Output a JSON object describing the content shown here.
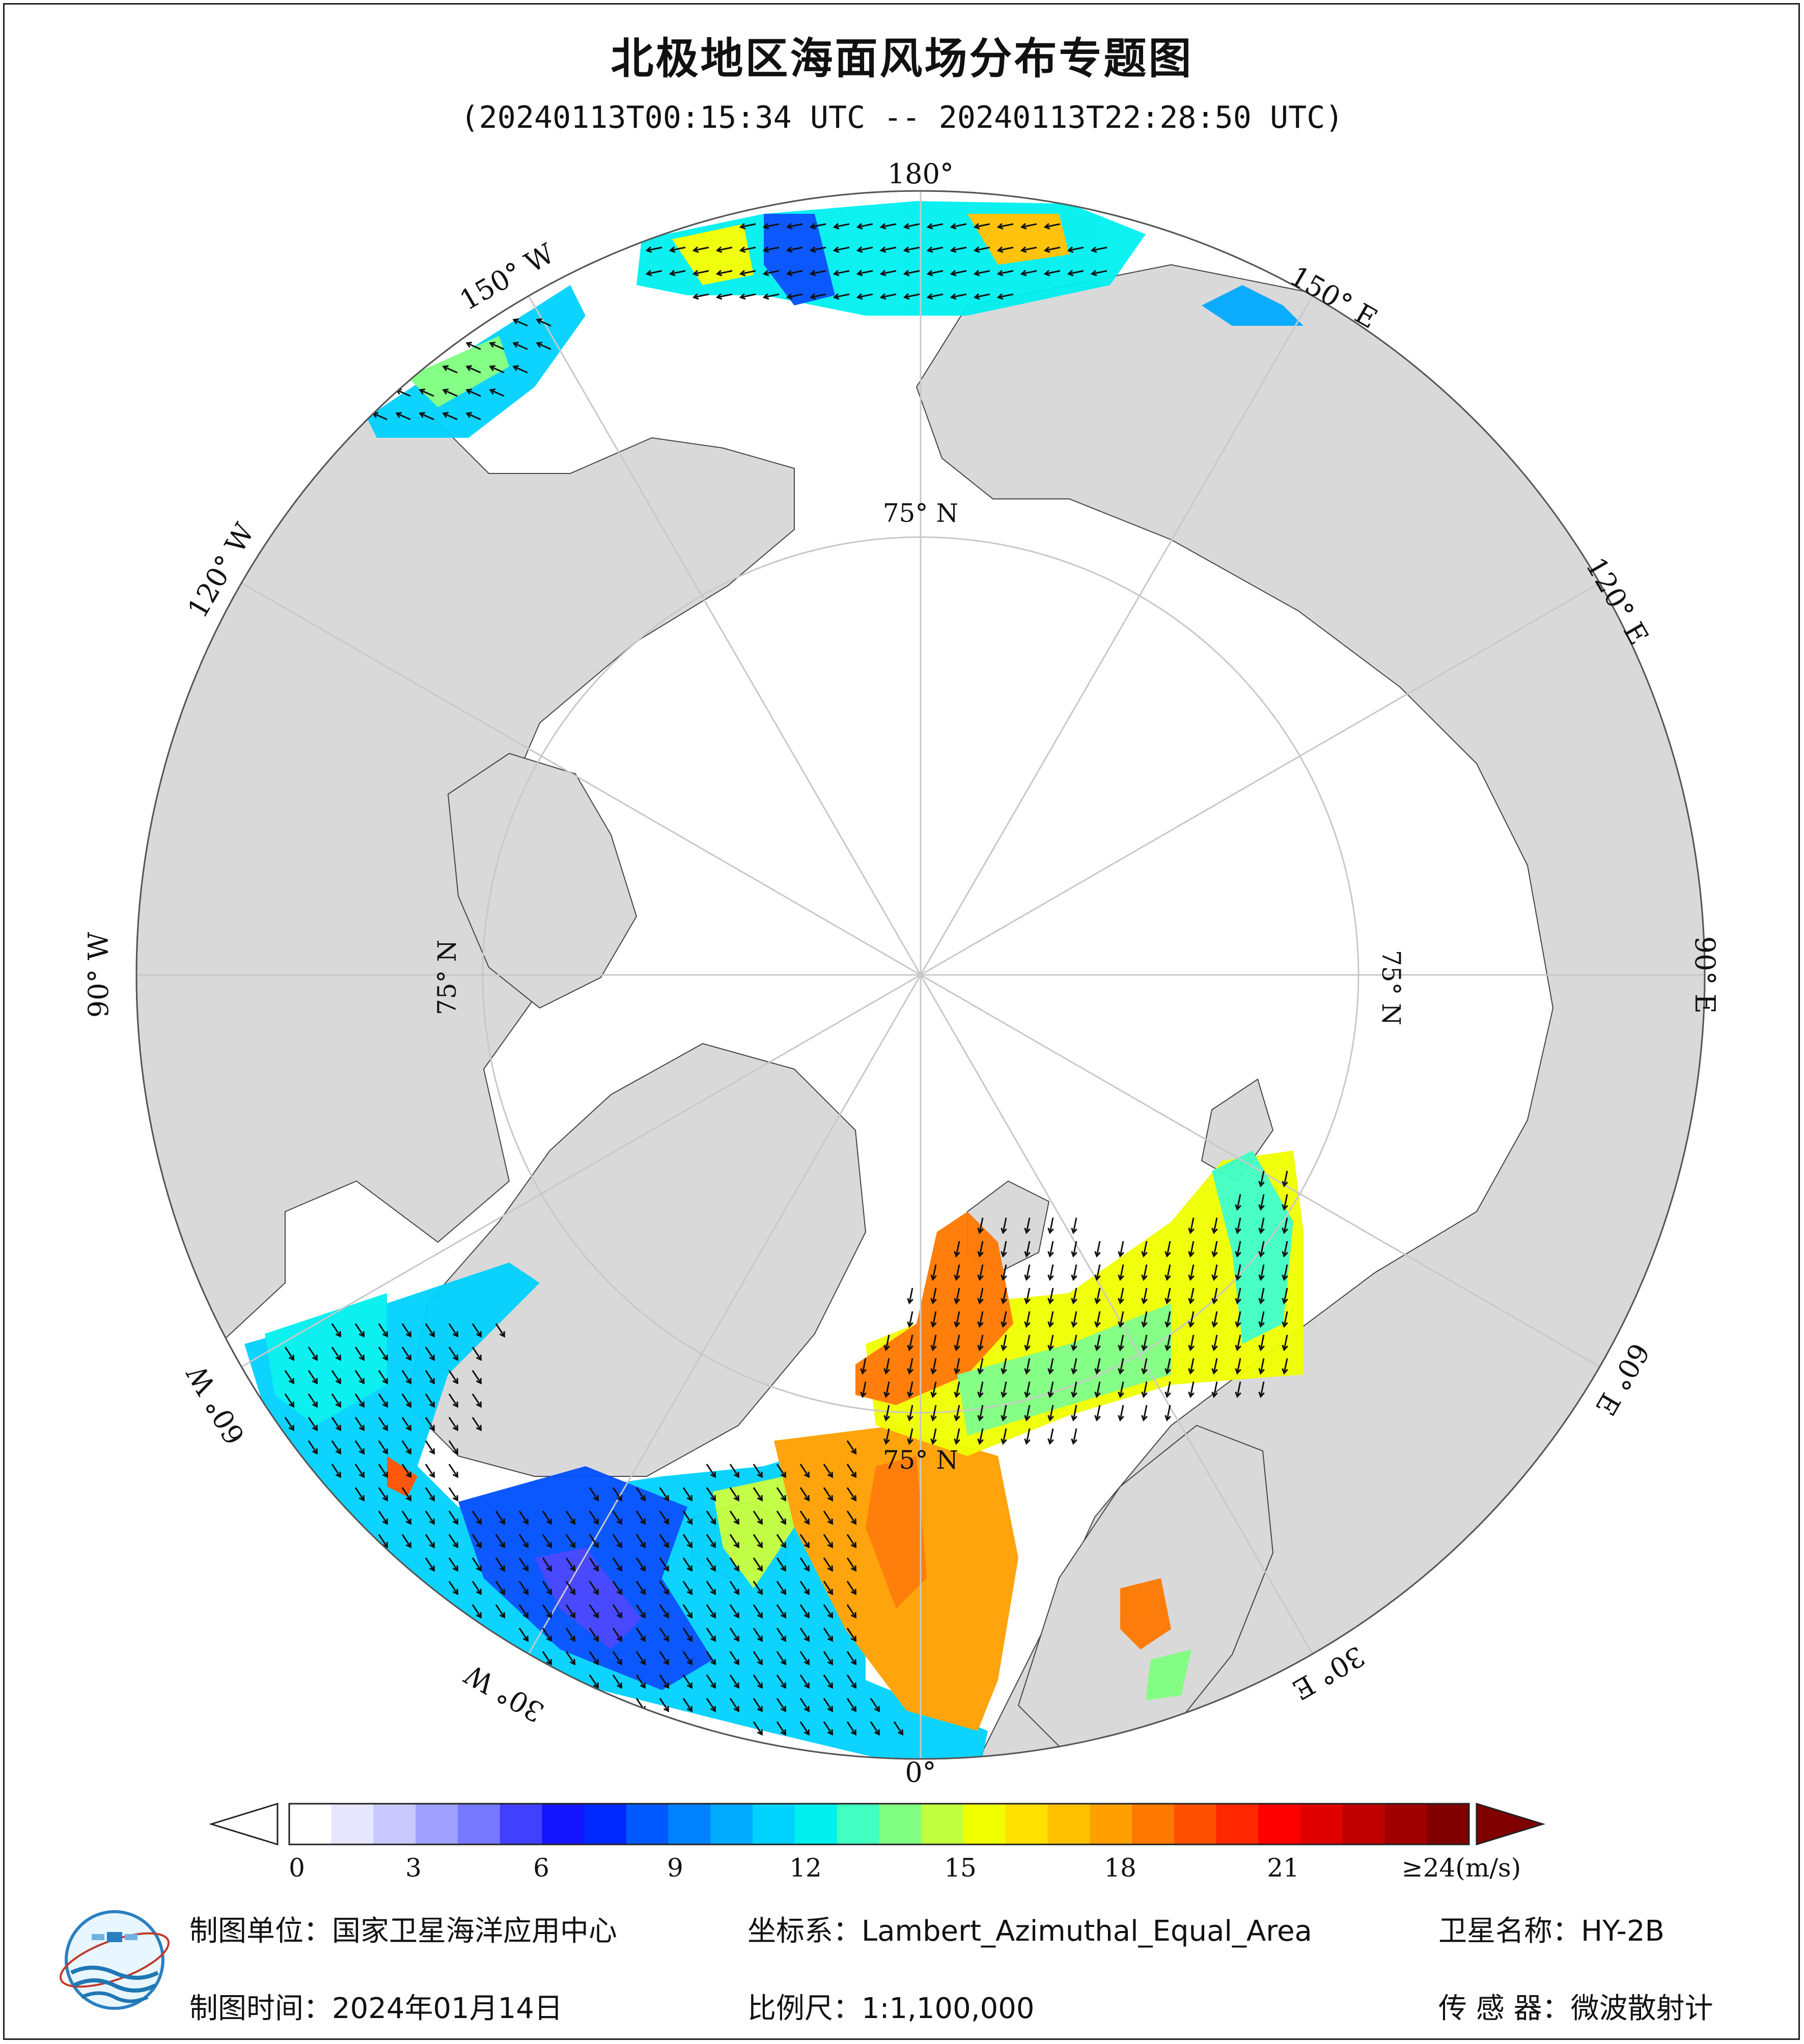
{
  "title": "北极地区海面风场分布专题图",
  "subtitle": "(20240113T00:15:34 UTC -- 20240113T22:28:50 UTC)",
  "map": {
    "longitude_labels": [
      {
        "text": "180°",
        "lon": 180
      },
      {
        "text": "150° W",
        "lon": -150
      },
      {
        "text": "120° W",
        "lon": -120
      },
      {
        "text": "90° W",
        "lon": -90
      },
      {
        "text": "60° W",
        "lon": -60
      },
      {
        "text": "30° W",
        "lon": -30
      },
      {
        "text": "0°",
        "lon": 0
      },
      {
        "text": "30° E",
        "lon": 30
      },
      {
        "text": "60° E",
        "lon": 60
      },
      {
        "text": "90° E",
        "lon": 90
      },
      {
        "text": "120° E",
        "lon": 120
      },
      {
        "text": "150° E",
        "lon": 150
      }
    ],
    "latitude_labels": [
      {
        "text": "75° N",
        "lon": 180
      },
      {
        "text": "75° N",
        "lon": 90
      },
      {
        "text": "75° N",
        "lon": 0
      },
      {
        "text": "75° N",
        "lon": -90
      }
    ],
    "colors": {
      "land": "#d9d9d9",
      "ocean_ice": "#ffffff",
      "graticule": "#c8c8c8",
      "vector": "#111111"
    }
  },
  "colorbar": {
    "unit": "(m/s)",
    "ticks": [
      "0",
      "3",
      "6",
      "9",
      "12",
      "15",
      "18",
      "21",
      "≥24"
    ],
    "min": 0,
    "max": 24,
    "colors": [
      "#ffffff",
      "#e6e6ff",
      "#c8c8ff",
      "#a0a0ff",
      "#7878ff",
      "#4040ff",
      "#1414ff",
      "#0028ff",
      "#005aff",
      "#0082ff",
      "#00aaff",
      "#00d2ff",
      "#00f0f0",
      "#40ffc0",
      "#80ff80",
      "#c0ff40",
      "#f0ff00",
      "#ffe000",
      "#ffc000",
      "#ffa000",
      "#ff7800",
      "#ff5000",
      "#ff2800",
      "#ff0000",
      "#e00000",
      "#c00000",
      "#a00000",
      "#800000"
    ],
    "under_color": "#ffffff",
    "over_color": "#800000"
  },
  "footer": {
    "org_label": "制图单位：",
    "org_value": "国家卫星海洋应用中心",
    "crs_label": "坐标系：",
    "crs_value": "Lambert_Azimuthal_Equal_Area",
    "sat_label": "卫星名称：",
    "sat_value": "HY-2B",
    "date_label": "制图时间：",
    "date_value": "2024年01月14日",
    "scale_label": "比例尺：",
    "scale_value": "1:1,100,000",
    "sensor_label": "传 感 器：",
    "sensor_value": "微波散射计"
  }
}
